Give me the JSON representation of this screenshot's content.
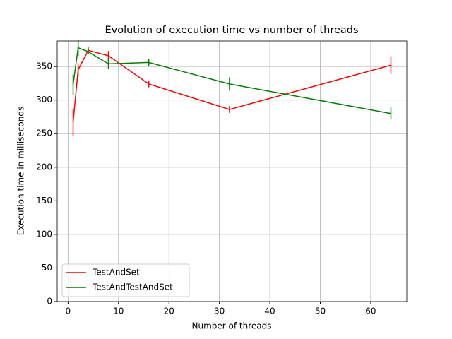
{
  "chart_data": {
    "type": "line",
    "title": "Evolution of execution time vs number of threads",
    "x_label": "Number of threads",
    "y_label": "Execution time in milliseconds",
    "x": [
      1,
      2,
      4,
      8,
      16,
      32,
      64
    ],
    "series": [
      {
        "name": "TestAndSet",
        "color": "#ff0000",
        "values": [
          267,
          345,
          374,
          366,
          324,
          286,
          352
        ],
        "errors": [
          20,
          10,
          5,
          7,
          5,
          5,
          13
        ]
      },
      {
        "name": "TestAndTestAndSet",
        "color": "#008000",
        "values": [
          323,
          378,
          372,
          354,
          356,
          324,
          280
        ],
        "errors": [
          15,
          12,
          4,
          7,
          5,
          10,
          9
        ]
      }
    ],
    "xlim": [
      -2.15,
      67.15
    ],
    "ylim": [
      0,
      388
    ],
    "xticks": [
      0,
      10,
      20,
      30,
      40,
      50,
      60
    ],
    "yticks": [
      0,
      50,
      100,
      150,
      200,
      250,
      300,
      350
    ],
    "grid": true,
    "legend": "lower left"
  }
}
